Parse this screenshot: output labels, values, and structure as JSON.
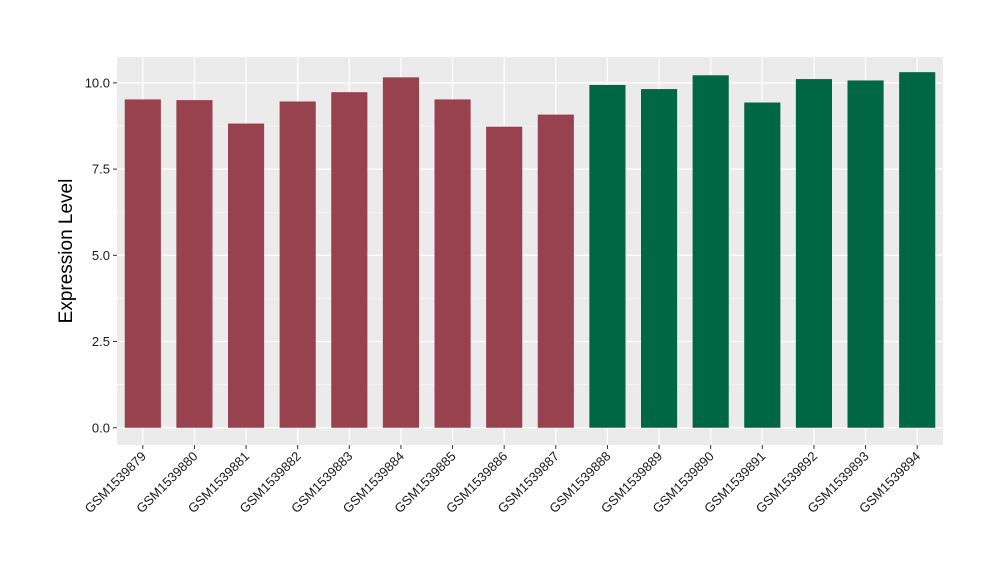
{
  "chart_data": {
    "type": "bar",
    "title": "",
    "xlabel": "",
    "ylabel": "Expression Level",
    "ylim": [
      -0.5,
      10.75
    ],
    "yticks": [
      0.0,
      2.5,
      5.0,
      7.5,
      10.0
    ],
    "ytick_labels": [
      "0.0",
      "2.5",
      "5.0",
      "7.5",
      "10.0"
    ],
    "grid": true,
    "legend": "none",
    "categories": [
      "GSM1539879",
      "GSM1539880",
      "GSM1539881",
      "GSM1539882",
      "GSM1539883",
      "GSM1539884",
      "GSM1539885",
      "GSM1539886",
      "GSM1539887",
      "GSM1539888",
      "GSM1539889",
      "GSM1539890",
      "GSM1539891",
      "GSM1539892",
      "GSM1539893",
      "GSM1539894"
    ],
    "values": [
      9.52,
      9.5,
      8.82,
      9.46,
      9.73,
      10.16,
      9.52,
      8.73,
      9.08,
      9.94,
      9.82,
      10.22,
      9.43,
      10.11,
      10.07,
      10.31
    ],
    "groups": [
      0,
      0,
      0,
      0,
      0,
      0,
      0,
      0,
      0,
      1,
      1,
      1,
      1,
      1,
      1,
      1
    ],
    "colors": {
      "group0": "#99424f",
      "group1": "#006744",
      "panel": "#ebebeb",
      "grid_major": "#ffffff",
      "grid_minor": "#f4f4f4"
    }
  }
}
